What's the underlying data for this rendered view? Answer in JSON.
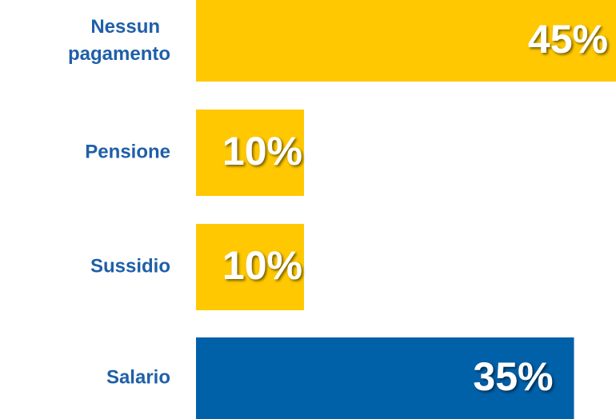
{
  "chart_data": {
    "type": "bar",
    "orientation": "horizontal",
    "categories": [
      "Nessun pagamento",
      "Pensione",
      "Sussidio",
      "Salario"
    ],
    "values": [
      45,
      10,
      10,
      35
    ],
    "value_labels": [
      "45%",
      "10%",
      "10%",
      "35%"
    ],
    "colors": [
      "#ffc800",
      "#ffc800",
      "#ffc800",
      "#0060a8"
    ]
  }
}
